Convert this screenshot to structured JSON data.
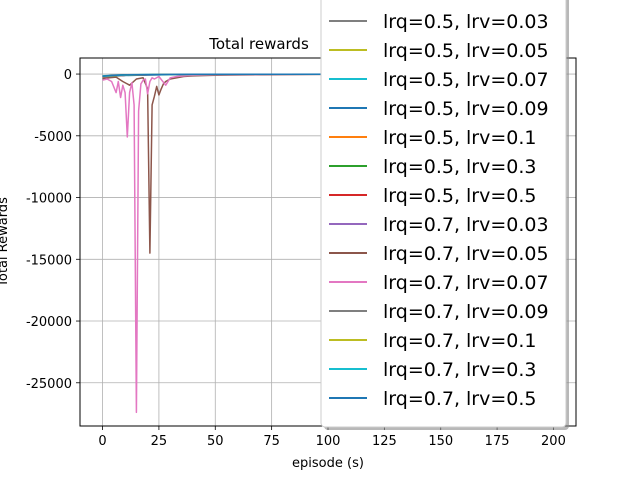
{
  "chart_data": {
    "type": "line",
    "title": "Total rewards",
    "xlabel": "episode (s)",
    "ylabel": "Total Rewards",
    "xlim": [
      -10,
      210
    ],
    "ylim": [
      -28500,
      1300
    ],
    "xticks": [
      0,
      25,
      50,
      75,
      100,
      125,
      150,
      175,
      200
    ],
    "yticks": [
      0,
      -5000,
      -10000,
      -15000,
      -20000,
      -25000
    ],
    "grid": true,
    "legend_placement": "upper-right",
    "series": [
      {
        "name": "lrq=0.5, lrv=0.03",
        "color": "#7f7f7f",
        "x": [
          0,
          5,
          10,
          20,
          40,
          80,
          120,
          160,
          200
        ],
        "y": [
          -250,
          -150,
          -100,
          -70,
          -40,
          -20,
          -10,
          -5,
          -5
        ]
      },
      {
        "name": "lrq=0.5, lrv=0.05",
        "color": "#bcbd22",
        "x": [
          0,
          5,
          10,
          20,
          40,
          80,
          120,
          160,
          200
        ],
        "y": [
          -200,
          -120,
          -80,
          -60,
          -30,
          -15,
          -10,
          -5,
          -5
        ]
      },
      {
        "name": "lrq=0.5, lrv=0.07",
        "color": "#17becf",
        "x": [
          0,
          5,
          10,
          20,
          40,
          80,
          120,
          160,
          200
        ],
        "y": [
          -150,
          -90,
          -60,
          -40,
          -25,
          -10,
          -8,
          -5,
          -5
        ]
      },
      {
        "name": "lrq=0.5, lrv=0.09",
        "color": "#1f77b4",
        "x": [
          0,
          5,
          10,
          20,
          40,
          80,
          120,
          160,
          200
        ],
        "y": [
          -300,
          -180,
          -120,
          -80,
          -40,
          -20,
          -12,
          -6,
          -5
        ]
      },
      {
        "name": "lrq=0.5, lrv=0.1",
        "color": "#ff7f0e",
        "x": [
          0,
          5,
          10,
          20,
          40,
          80,
          120,
          160,
          200
        ],
        "y": [
          -220,
          -140,
          -90,
          -60,
          -30,
          -15,
          -10,
          -5,
          -5
        ]
      },
      {
        "name": "lrq=0.5, lrv=0.3",
        "color": "#2ca02c",
        "x": [
          0,
          5,
          10,
          20,
          40,
          80,
          120,
          160,
          200
        ],
        "y": [
          -180,
          -110,
          -70,
          -50,
          -25,
          -12,
          -8,
          -5,
          -5
        ]
      },
      {
        "name": "lrq=0.5, lrv=0.5",
        "color": "#d62728",
        "x": [
          0,
          5,
          10,
          20,
          40,
          80,
          120,
          160,
          200
        ],
        "y": [
          -260,
          -160,
          -100,
          -70,
          -35,
          -18,
          -10,
          -5,
          -5
        ]
      },
      {
        "name": "lrq=0.7, lrv=0.03",
        "color": "#9467bd",
        "x": [
          0,
          5,
          10,
          20,
          40,
          80,
          120,
          160,
          200
        ],
        "y": [
          -240,
          -150,
          -90,
          -60,
          -30,
          -15,
          -10,
          -5,
          -5
        ]
      },
      {
        "name": "lrq=0.7, lrv=0.05",
        "color": "#8c564b",
        "x": [
          0,
          3,
          6,
          9,
          12,
          15,
          18,
          20,
          21,
          22,
          23,
          24,
          25,
          26,
          27,
          28,
          30,
          33,
          36,
          40,
          50,
          70,
          100,
          150,
          200
        ],
        "y": [
          -400,
          -300,
          -250,
          -600,
          -900,
          -400,
          -300,
          -1200,
          -14500,
          -2500,
          -1800,
          -1000,
          -1700,
          -1200,
          -800,
          -600,
          -400,
          -300,
          -200,
          -150,
          -100,
          -50,
          -30,
          -10,
          -5
        ]
      },
      {
        "name": "lrq=0.7, lrv=0.07",
        "color": "#e377c2",
        "x": [
          0,
          2,
          4,
          6,
          7,
          8,
          9,
          10,
          11,
          12,
          13,
          14,
          15,
          16,
          17,
          18,
          19,
          20,
          21,
          22,
          23,
          25,
          28,
          30,
          33,
          36,
          40,
          45,
          50,
          70,
          100,
          150,
          200
        ],
        "y": [
          -500,
          -400,
          -600,
          -1500,
          -600,
          -1900,
          -900,
          -1500,
          -5100,
          -1500,
          -700,
          -2500,
          -27400,
          -3000,
          -800,
          -500,
          -400,
          -1600,
          -600,
          -300,
          -400,
          -200,
          -900,
          -300,
          -200,
          -150,
          -100,
          -80,
          -50,
          -30,
          -20,
          -10,
          -5
        ]
      },
      {
        "name": "lrq=0.7, lrv=0.09",
        "color": "#7f7f7f",
        "x": [
          0,
          5,
          10,
          20,
          40,
          80,
          120,
          160,
          200
        ],
        "y": [
          -230,
          -140,
          -90,
          -60,
          -30,
          -15,
          -10,
          -5,
          -5
        ]
      },
      {
        "name": "lrq=0.7, lrv=0.1",
        "color": "#bcbd22",
        "x": [
          0,
          5,
          10,
          20,
          40,
          80,
          120,
          160,
          200
        ],
        "y": [
          -210,
          -130,
          -85,
          -55,
          -28,
          -14,
          -9,
          -5,
          -5
        ]
      },
      {
        "name": "lrq=0.7, lrv=0.3",
        "color": "#17becf",
        "x": [
          0,
          5,
          10,
          20,
          40,
          80,
          120,
          160,
          200
        ],
        "y": [
          -190,
          -120,
          -75,
          -50,
          -25,
          -12,
          -8,
          -5,
          -5
        ]
      },
      {
        "name": "lrq=0.7, lrv=0.5",
        "color": "#1f77b4",
        "x": [
          0,
          5,
          10,
          20,
          40,
          80,
          120,
          160,
          200
        ],
        "y": [
          -170,
          -100,
          -65,
          -45,
          -22,
          -11,
          -7,
          -5,
          -5
        ]
      }
    ]
  }
}
